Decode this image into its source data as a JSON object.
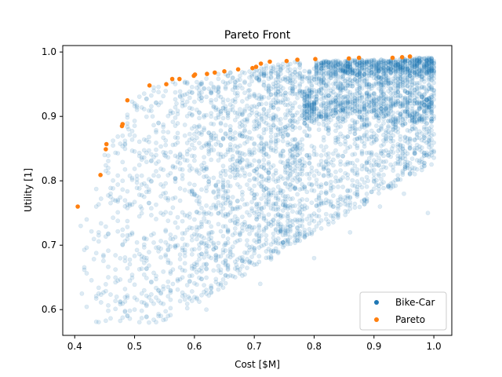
{
  "chart_data": {
    "type": "scatter",
    "title": "Pareto Front",
    "xlabel": "Cost [$M]",
    "ylabel": "Utility [1]",
    "xlim": [
      0.38,
      1.03
    ],
    "ylim": [
      0.56,
      1.01
    ],
    "xticks": [
      0.4,
      0.5,
      0.6,
      0.7,
      0.8,
      0.9,
      1.0
    ],
    "yticks": [
      0.6,
      0.7,
      0.8,
      0.9,
      1.0
    ],
    "grid": false,
    "legend": {
      "placement": "lower-right"
    },
    "series": [
      {
        "name": "Bike-Car",
        "color": "#1f77b4",
        "alpha": 0.15,
        "marker": "circle",
        "sample_points": [
          [
            0.41,
            0.73
          ],
          [
            0.42,
            0.74
          ],
          [
            0.44,
            0.72
          ],
          [
            0.45,
            0.84
          ],
          [
            0.46,
            0.78
          ],
          [
            0.47,
            0.62
          ],
          [
            0.48,
            0.8
          ],
          [
            0.49,
            0.88
          ],
          [
            0.5,
            0.6
          ],
          [
            0.5,
            0.92
          ],
          [
            0.51,
            0.76
          ],
          [
            0.52,
            0.68
          ],
          [
            0.53,
            0.9
          ],
          [
            0.54,
            0.59
          ],
          [
            0.55,
            0.84
          ],
          [
            0.56,
            0.63
          ],
          [
            0.57,
            0.92
          ],
          [
            0.58,
            0.65
          ],
          [
            0.59,
            0.62
          ],
          [
            0.6,
            0.78
          ],
          [
            0.61,
            0.95
          ],
          [
            0.62,
            0.6
          ],
          [
            0.63,
            0.72
          ],
          [
            0.64,
            0.86
          ],
          [
            0.65,
            0.7
          ],
          [
            0.66,
            0.91
          ],
          [
            0.67,
            0.67
          ],
          [
            0.68,
            0.82
          ],
          [
            0.69,
            0.94
          ],
          [
            0.7,
            0.75
          ],
          [
            0.71,
            0.64
          ],
          [
            0.72,
            0.88
          ],
          [
            0.73,
            0.97
          ],
          [
            0.74,
            0.8
          ],
          [
            0.75,
            0.7
          ],
          [
            0.76,
            0.92
          ],
          [
            0.77,
            0.85
          ],
          [
            0.78,
            0.74
          ],
          [
            0.79,
            0.96
          ],
          [
            0.8,
            0.68
          ],
          [
            0.81,
            0.9
          ],
          [
            0.82,
            0.82
          ],
          [
            0.83,
            0.97
          ],
          [
            0.84,
            0.77
          ],
          [
            0.85,
            0.93
          ],
          [
            0.86,
            0.72
          ],
          [
            0.87,
            0.88
          ],
          [
            0.88,
            0.98
          ],
          [
            0.89,
            0.8
          ],
          [
            0.9,
            0.92
          ],
          [
            0.91,
            0.76
          ],
          [
            0.92,
            0.96
          ],
          [
            0.93,
            0.85
          ],
          [
            0.94,
            0.98
          ],
          [
            0.95,
            0.78
          ],
          [
            0.96,
            0.93
          ],
          [
            0.97,
            0.88
          ],
          [
            0.98,
            0.97
          ],
          [
            0.99,
            0.75
          ],
          [
            1.0,
            0.94
          ]
        ]
      },
      {
        "name": "Pareto",
        "color": "#ff7f0e",
        "alpha": 1.0,
        "marker": "circle",
        "points": [
          [
            0.405,
            0.76
          ],
          [
            0.443,
            0.809
          ],
          [
            0.452,
            0.849
          ],
          [
            0.453,
            0.857
          ],
          [
            0.479,
            0.885
          ],
          [
            0.48,
            0.888
          ],
          [
            0.488,
            0.925
          ],
          [
            0.525,
            0.948
          ],
          [
            0.553,
            0.95
          ],
          [
            0.563,
            0.958
          ],
          [
            0.575,
            0.958
          ],
          [
            0.599,
            0.963
          ],
          [
            0.601,
            0.965
          ],
          [
            0.621,
            0.966
          ],
          [
            0.634,
            0.968
          ],
          [
            0.65,
            0.97
          ],
          [
            0.673,
            0.973
          ],
          [
            0.697,
            0.975
          ],
          [
            0.703,
            0.977
          ],
          [
            0.711,
            0.982
          ],
          [
            0.726,
            0.985
          ],
          [
            0.754,
            0.986
          ],
          [
            0.772,
            0.988
          ],
          [
            0.802,
            0.989
          ],
          [
            0.858,
            0.99
          ],
          [
            0.875,
            0.991
          ],
          [
            0.931,
            0.991
          ],
          [
            0.947,
            0.992
          ],
          [
            0.96,
            0.993
          ]
        ]
      }
    ]
  }
}
